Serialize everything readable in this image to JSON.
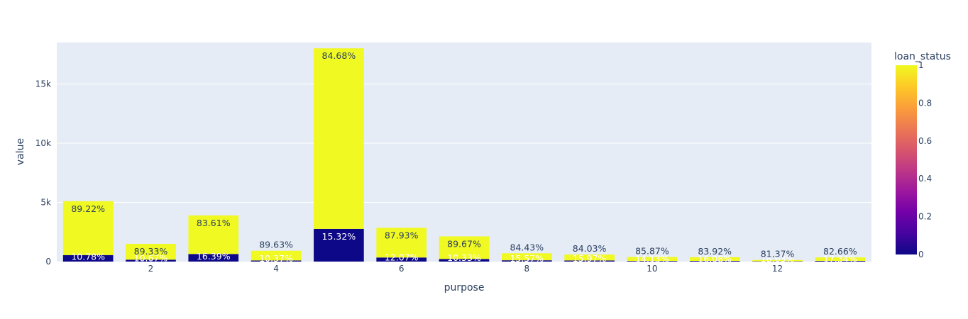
{
  "chart_data": {
    "type": "bar",
    "barmode": "stack",
    "xlabel": "purpose",
    "ylabel": "value",
    "x_ticks": [
      "2",
      "4",
      "6",
      "8",
      "10",
      "12"
    ],
    "y_ticks": [
      "0",
      "5k",
      "10k",
      "15k"
    ],
    "ylim": [
      0,
      18500
    ],
    "xlim": [
      0.5,
      13.5
    ],
    "x": [
      1,
      2,
      3,
      4,
      5,
      6,
      7,
      8,
      9,
      10,
      11,
      12,
      13
    ],
    "series": [
      {
        "loan_status": 0,
        "color": "#0d0887",
        "values": [
          550,
          160,
          640,
          95,
          2760,
          345,
          220,
          110,
          95,
          55,
          60,
          25,
          60
        ],
        "text": [
          "10.78%",
          "10.67%",
          "16.39%",
          "10.37%",
          "15.32%",
          "12.07%",
          "10.33%",
          "15.57%",
          "15.97%",
          "14.13%",
          "16.08%",
          "18.63%",
          "17.34%"
        ]
      },
      {
        "loan_status": 1,
        "color": "#f0f921",
        "values": [
          4550,
          1340,
          3260,
          820,
          15250,
          2510,
          1910,
          590,
          500,
          330,
          310,
          110,
          290
        ],
        "text": [
          "89.22%",
          "89.33%",
          "83.61%",
          "89.63%",
          "84.68%",
          "87.93%",
          "89.67%",
          "84.43%",
          "84.03%",
          "85.87%",
          "83.92%",
          "81.37%",
          "82.66%"
        ]
      }
    ],
    "grid": true,
    "colorbar": {
      "title": "loan_status",
      "ticks": [
        "0",
        "0.2",
        "0.4",
        "0.6",
        "0.8",
        "1"
      ],
      "range": [
        0,
        1
      ],
      "colorscale": [
        "#0d0887",
        "#46039f",
        "#7201a8",
        "#9c179e",
        "#bd3786",
        "#d8576b",
        "#ed7953",
        "#fb9f3a",
        "#fdca26",
        "#f0f921"
      ]
    }
  }
}
